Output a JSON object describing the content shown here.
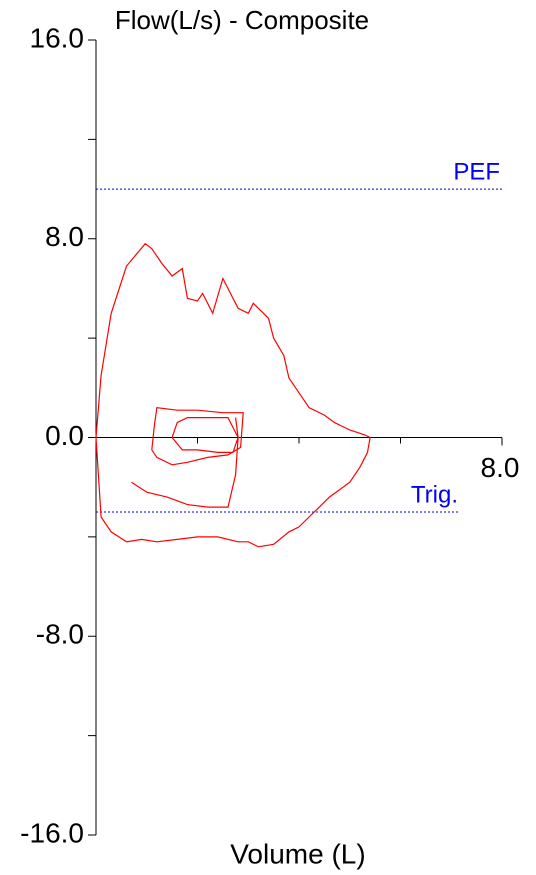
{
  "chart_data": {
    "type": "line",
    "title": "Flow(L/s)  -  Composite",
    "x_label": "Volume (L)",
    "xlim": [
      0,
      8
    ],
    "ylim": [
      -16,
      16
    ],
    "xticks": [
      {
        "value": 8,
        "label": "8.0"
      }
    ],
    "xminorticks": [
      2,
      4,
      6
    ],
    "yticks": [
      {
        "value": 16,
        "label": "16.0"
      },
      {
        "value": 8,
        "label": "8.0"
      },
      {
        "value": 0,
        "label": "0.0"
      },
      {
        "value": -8,
        "label": "-8.0"
      },
      {
        "value": -16,
        "label": "-16.0"
      }
    ],
    "yminorticks": [
      12,
      4,
      -4,
      -12
    ],
    "reference_lines": [
      {
        "label": "PEF",
        "value": 10,
        "color": "#0000ff"
      },
      {
        "label": "Trig.",
        "value": -3,
        "color": "#0000ff"
      }
    ],
    "series": [
      {
        "color": "#ff0000",
        "x": [
          0,
          0.1,
          0.3,
          0.6,
          0.97,
          1.1,
          1.3,
          1.5,
          1.7,
          1.8,
          2.0,
          2.1,
          2.3,
          2.5,
          2.7,
          2.8,
          3.0,
          3.1,
          3.3,
          3.4,
          3.5,
          3.7,
          3.8,
          4.0,
          4.2,
          4.5,
          4.7,
          5.0,
          5.3,
          5.4,
          5.35,
          5.2,
          5.0,
          4.6,
          4.4,
          4.2,
          4.0,
          3.8,
          3.5,
          3.2,
          3.0,
          2.8,
          2.4,
          2.0,
          1.6,
          1.2,
          0.9,
          0.6,
          0.3,
          0.1,
          0,
          null,
          1.1,
          1.15,
          1.2,
          1.6,
          2.0,
          2.5,
          2.9,
          2.85,
          2.6,
          2.2,
          1.8,
          1.5,
          1.2,
          1.1,
          null,
          1.5,
          1.6,
          1.8,
          2.2,
          2.6,
          2.8,
          2.7,
          2.4,
          2.0,
          1.7,
          1.5,
          null,
          0.7,
          1.0,
          1.4,
          1.8,
          2.2,
          2.6,
          2.75,
          2.8,
          2.75
        ],
        "values": [
          0,
          2.5,
          5.0,
          6.9,
          7.8,
          7.6,
          7.0,
          6.5,
          6.8,
          5.6,
          5.5,
          5.8,
          5.0,
          6.4,
          5.6,
          5.2,
          5.0,
          5.4,
          5.0,
          4.8,
          4.0,
          3.3,
          2.4,
          1.8,
          1.2,
          0.9,
          0.6,
          0.3,
          0.1,
          0,
          -0.6,
          -1.2,
          -1.8,
          -2.4,
          -2.8,
          -3.2,
          -3.6,
          -3.8,
          -4.3,
          -4.4,
          -4.2,
          -4.2,
          -4.0,
          -4.0,
          -4.1,
          -4.2,
          -4.1,
          -4.2,
          -3.8,
          -3.2,
          0,
          null,
          -0.5,
          0.5,
          1.2,
          1.1,
          1.1,
          1.0,
          1.0,
          -0.4,
          -0.7,
          -0.8,
          -1.0,
          -1.1,
          -0.8,
          -0.5,
          null,
          0,
          0.6,
          0.8,
          0.8,
          0.8,
          0,
          -0.6,
          -0.6,
          -0.5,
          -0.5,
          0,
          null,
          -1.8,
          -2.2,
          -2.4,
          -2.7,
          -2.8,
          -2.8,
          -1.5,
          0,
          0.8
        ]
      }
    ]
  }
}
